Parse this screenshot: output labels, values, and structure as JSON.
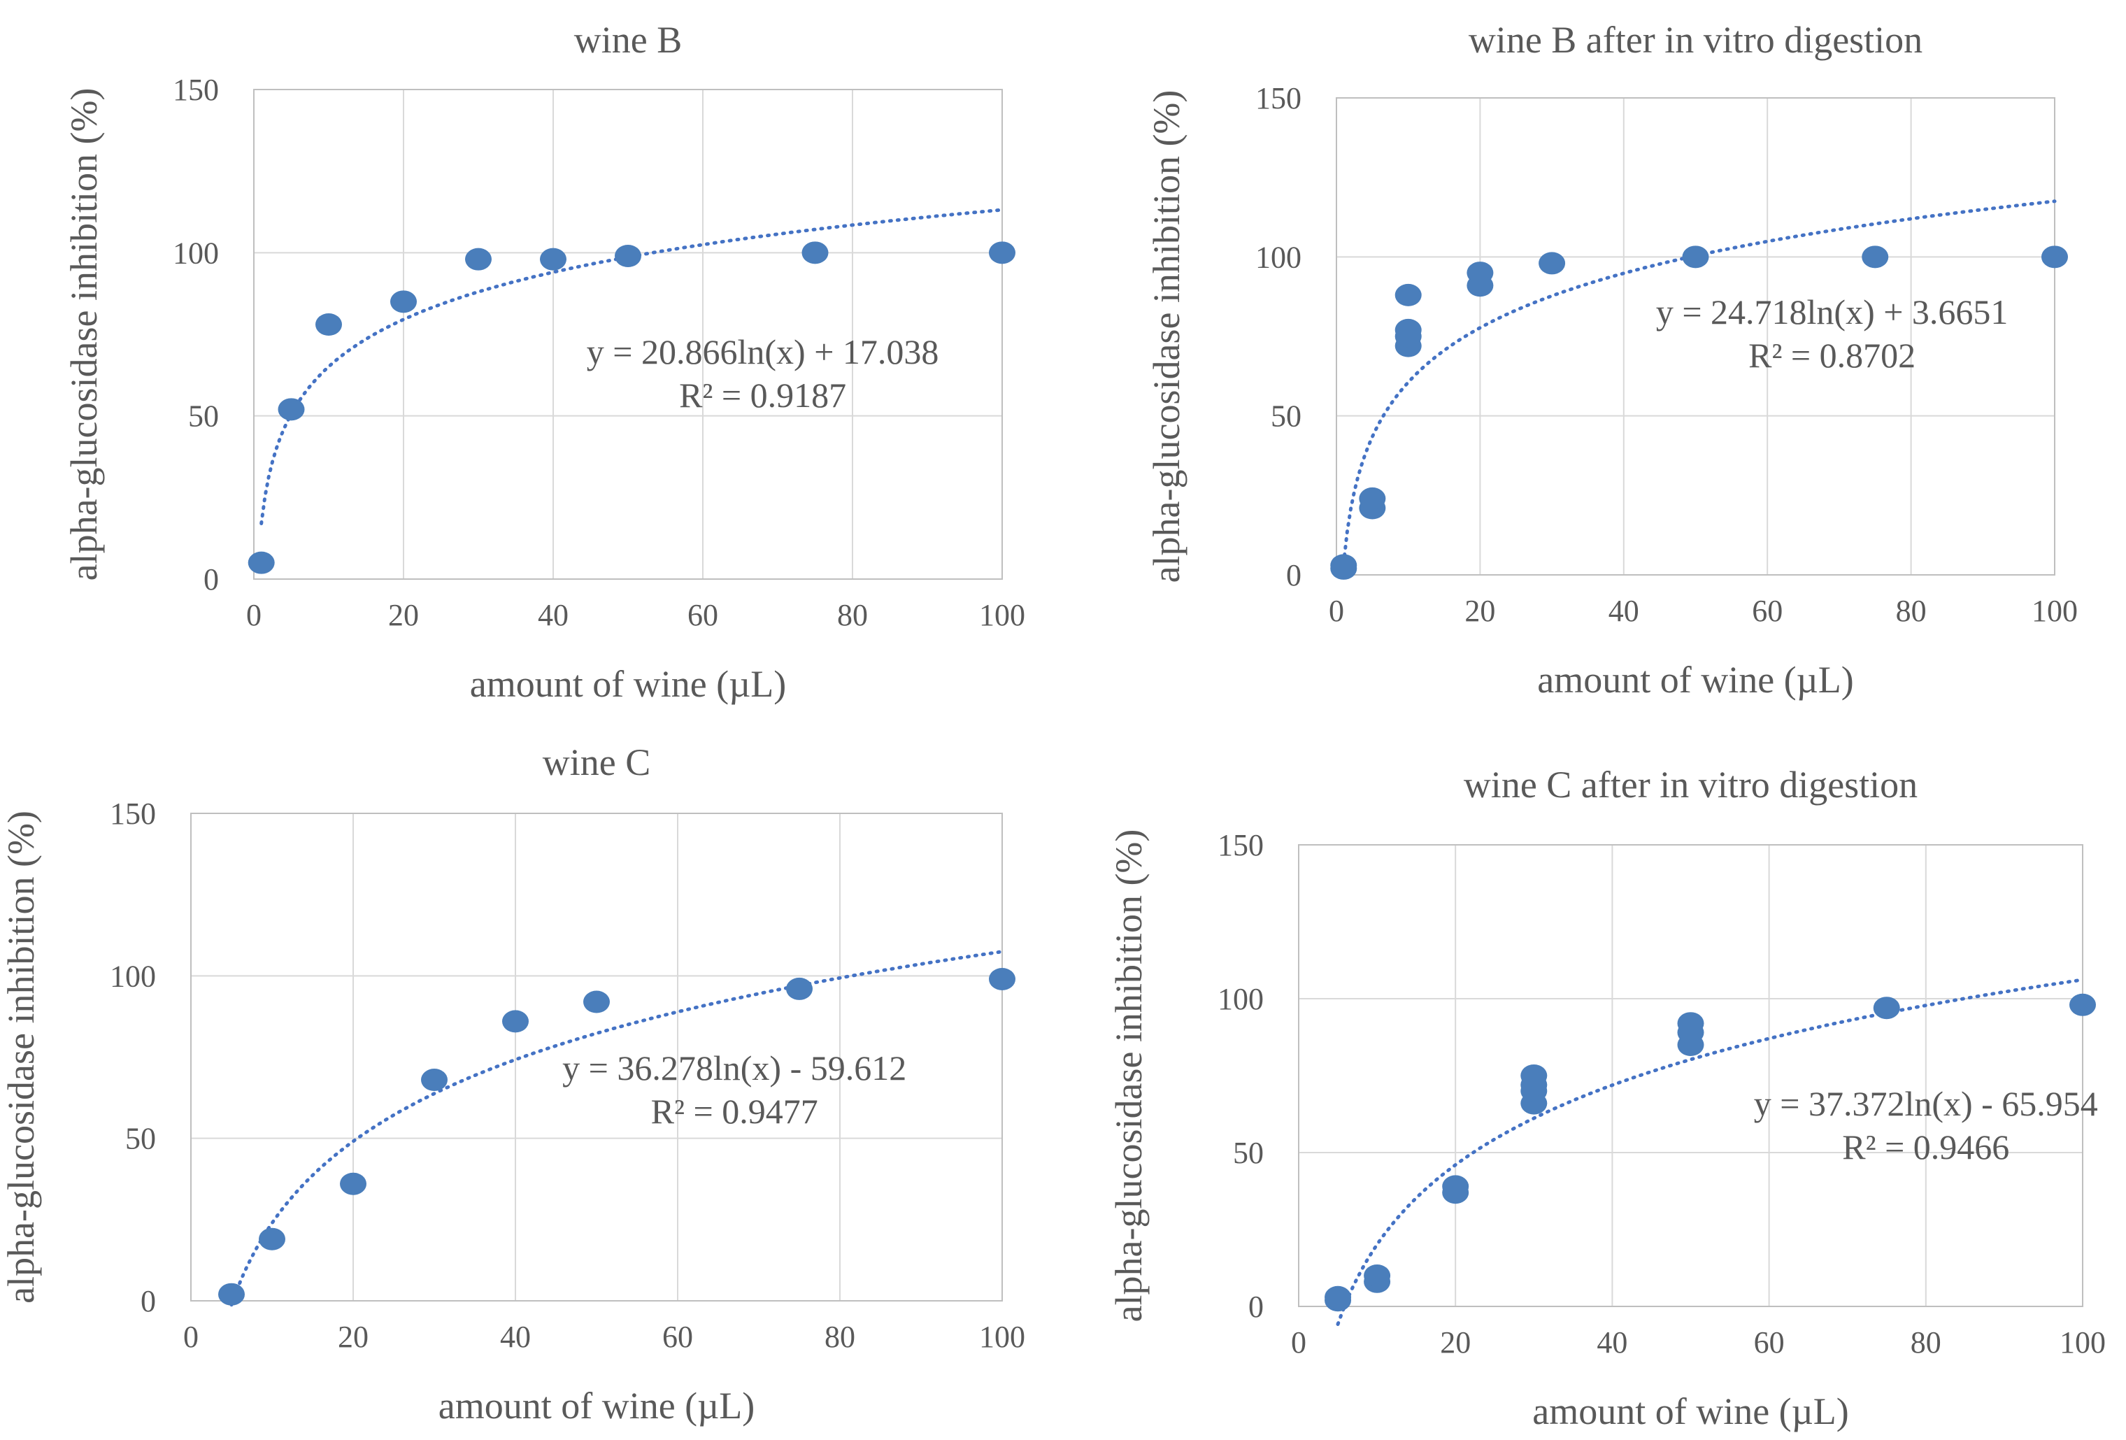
{
  "figure": {
    "panels": 4
  },
  "chart_data": [
    {
      "type": "scatter",
      "title": "wine B",
      "xlabel": "amount of wine (µL)",
      "ylabel": "alpha-glucosidase inhibition (%)",
      "xlim": [
        0,
        100
      ],
      "ylim": [
        0,
        150
      ],
      "xticks": [
        0,
        20,
        40,
        60,
        80,
        100
      ],
      "yticks": [
        0,
        50,
        100,
        150
      ],
      "grid": true,
      "point_color": "#4a7ebb",
      "trend_color": "#4472c4",
      "x": [
        1,
        5,
        10,
        20,
        30,
        40,
        50,
        75,
        100
      ],
      "y": [
        5,
        52,
        78,
        85,
        98,
        98,
        99,
        100,
        100
      ],
      "trendline": {
        "type": "log",
        "a": 20.866,
        "b": 17.038,
        "x_from": 1,
        "x_to": 100
      },
      "equation": "y = 20.866ln(x)  + 17.038",
      "r2": "R² = 0.9187",
      "annotation_anchor": [
        68,
        66
      ]
    },
    {
      "type": "scatter",
      "title": "wine B after in vitro digestion",
      "xlabel": "amount of wine (µL)",
      "ylabel": "alpha-glucosidase inhibition (%)",
      "xlim": [
        0,
        100
      ],
      "ylim": [
        0,
        150
      ],
      "xticks": [
        0,
        20,
        40,
        60,
        80,
        100
      ],
      "yticks": [
        0,
        50,
        100,
        150
      ],
      "grid": true,
      "point_color": "#4a7ebb",
      "trend_color": "#4472c4",
      "x": [
        1,
        1,
        5,
        5,
        10,
        10,
        10,
        10,
        20,
        20,
        30,
        50,
        75,
        100
      ],
      "y": [
        3,
        2,
        21,
        24,
        72,
        75,
        77,
        88,
        91,
        95,
        98,
        100,
        100,
        100
      ],
      "trendline": {
        "type": "log",
        "a": 24.718,
        "b": 3.6651,
        "x_from": 1,
        "x_to": 100
      },
      "equation": "y = 24.718ln(x)  + 3.6651",
      "r2": "R² = 0.8702",
      "annotation_anchor": [
        69,
        79
      ]
    },
    {
      "type": "scatter",
      "title": "wine C",
      "xlabel": "amount of wine (µL)",
      "ylabel": "alpha-glucosidase inhibition (%)",
      "xlim": [
        0,
        100
      ],
      "ylim": [
        0,
        150
      ],
      "xticks": [
        0,
        20,
        40,
        60,
        80,
        100
      ],
      "yticks": [
        0,
        50,
        100,
        150
      ],
      "grid": true,
      "point_color": "#4a7ebb",
      "trend_color": "#4472c4",
      "x": [
        5,
        10,
        20,
        30,
        40,
        50,
        75,
        100
      ],
      "y": [
        2,
        19,
        36,
        68,
        86,
        92,
        96,
        99
      ],
      "trendline": {
        "type": "log",
        "a": 36.278,
        "b": -59.612,
        "x_from": 5,
        "x_to": 100
      },
      "equation": "y = 36.278ln(x)  - 59.612",
      "r2": "R² = 0.9477",
      "annotation_anchor": [
        67,
        68
      ]
    },
    {
      "type": "scatter",
      "title": "wine C after in vitro digestion",
      "xlabel": "amount of wine (µL)",
      "ylabel": "alpha-glucosidase inhibition (%)",
      "xlim": [
        0,
        100
      ],
      "ylim": [
        0,
        150
      ],
      "xticks": [
        0,
        20,
        40,
        60,
        80,
        100
      ],
      "yticks": [
        0,
        50,
        100,
        150
      ],
      "grid": true,
      "point_color": "#4a7ebb",
      "trend_color": "#4472c4",
      "x": [
        5,
        5,
        10,
        10,
        20,
        20,
        30,
        30,
        30,
        30,
        50,
        50,
        50,
        75,
        100
      ],
      "y": [
        2,
        3,
        8,
        10,
        37,
        39,
        66,
        70,
        72,
        75,
        85,
        89,
        92,
        97,
        98
      ],
      "trendline": {
        "type": "log",
        "a": 37.372,
        "b": -65.954,
        "x_from": 5,
        "x_to": 100
      },
      "equation": "y = 37.372ln(x) - 65.954",
      "r2": "R² = 0.9466",
      "annotation_anchor": [
        80,
        62
      ]
    }
  ]
}
